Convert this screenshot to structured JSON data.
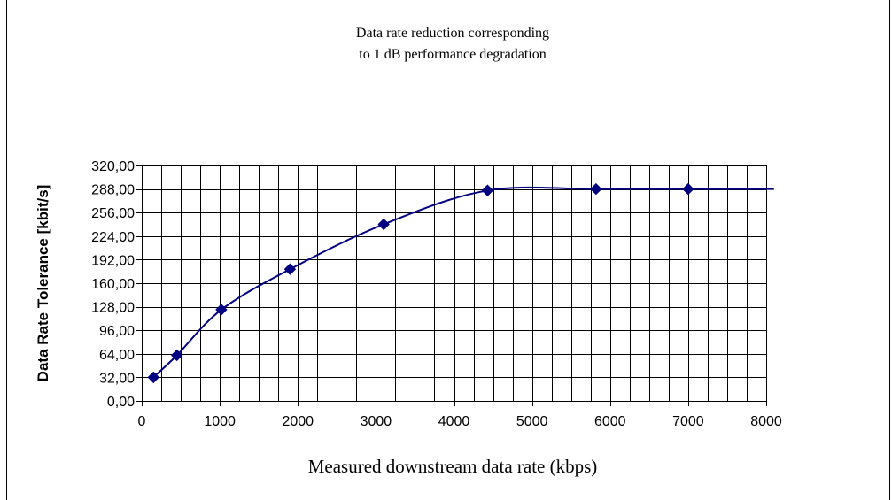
{
  "chart_data": {
    "type": "line",
    "title": [
      "Data rate reduction corresponding",
      "to 1 dB performance degradation"
    ],
    "xlabel": "Measured downstream data rate (kbps)",
    "ylabel": "Data Rate Tolerance [kbit/s]",
    "xlim": [
      0,
      8000
    ],
    "ylim": [
      0,
      320
    ],
    "x_ticks": [
      0,
      1000,
      2000,
      3000,
      4000,
      5000,
      6000,
      7000,
      8000
    ],
    "x_tick_labels": [
      "0",
      "1000",
      "2000",
      "3000",
      "4000",
      "5000",
      "6000",
      "7000",
      "8000"
    ],
    "y_ticks": [
      0,
      32,
      64,
      96,
      128,
      160,
      192,
      224,
      256,
      288,
      320
    ],
    "y_tick_labels": [
      "0,00",
      "32,00",
      "64,00",
      "96,00",
      "128,00",
      "160,00",
      "192,00",
      "224,00",
      "256,00",
      "288,00",
      "320,00"
    ],
    "x_minor_step": 250,
    "y_minor_step": 32,
    "grid": true,
    "legend": "none",
    "series": [
      {
        "color": "#000080",
        "points": [
          {
            "x": 150,
            "y": 32
          },
          {
            "x": 450,
            "y": 62
          },
          {
            "x": 1020,
            "y": 124
          },
          {
            "x": 1900,
            "y": 179
          },
          {
            "x": 3100,
            "y": 240
          },
          {
            "x": 4430,
            "y": 286
          },
          {
            "x": 5820,
            "y": 288
          },
          {
            "x": 7000,
            "y": 288
          }
        ],
        "line_extends_to_x": 8100
      }
    ]
  }
}
